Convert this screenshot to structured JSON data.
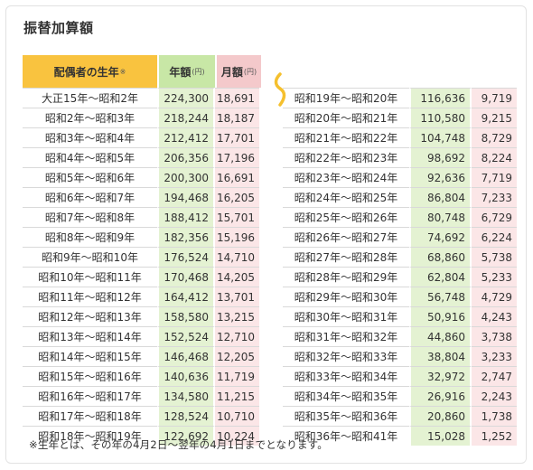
{
  "title": "振替加算額",
  "headers": {
    "spouse_birth_year": "配偶者の生年",
    "spouse_mark": "※",
    "annual": "年額",
    "annual_unit": "(円)",
    "monthly": "月額",
    "monthly_unit": "(円)"
  },
  "left_rows": [
    {
      "era": "大正15年〜昭和2年",
      "annual": "224,300",
      "monthly": "18,691"
    },
    {
      "era": "昭和2年〜昭和3年",
      "annual": "218,244",
      "monthly": "18,187"
    },
    {
      "era": "昭和3年〜昭和4年",
      "annual": "212,412",
      "monthly": "17,701"
    },
    {
      "era": "昭和4年〜昭和5年",
      "annual": "206,356",
      "monthly": "17,196"
    },
    {
      "era": "昭和5年〜昭和6年",
      "annual": "200,300",
      "monthly": "16,691"
    },
    {
      "era": "昭和6年〜昭和7年",
      "annual": "194,468",
      "monthly": "16,205"
    },
    {
      "era": "昭和7年〜昭和8年",
      "annual": "188,412",
      "monthly": "15,701"
    },
    {
      "era": "昭和8年〜昭和9年",
      "annual": "182,356",
      "monthly": "15,196"
    },
    {
      "era": "昭和9年〜昭和10年",
      "annual": "176,524",
      "monthly": "14,710"
    },
    {
      "era": "昭和10年〜昭和11年",
      "annual": "170,468",
      "monthly": "14,205"
    },
    {
      "era": "昭和11年〜昭和12年",
      "annual": "164,412",
      "monthly": "13,701"
    },
    {
      "era": "昭和12年〜昭和13年",
      "annual": "158,580",
      "monthly": "13,215"
    },
    {
      "era": "昭和13年〜昭和14年",
      "annual": "152,524",
      "monthly": "12,710"
    },
    {
      "era": "昭和14年〜昭和15年",
      "annual": "146,468",
      "monthly": "12,205"
    },
    {
      "era": "昭和15年〜昭和16年",
      "annual": "140,636",
      "monthly": "11,719"
    },
    {
      "era": "昭和16年〜昭和17年",
      "annual": "134,580",
      "monthly": "11,215"
    },
    {
      "era": "昭和17年〜昭和18年",
      "annual": "128,524",
      "monthly": "10,710"
    },
    {
      "era": "昭和18年〜昭和19年",
      "annual": "122,692",
      "monthly": "10,224"
    }
  ],
  "right_rows": [
    {
      "era": "昭和19年〜昭和20年",
      "annual": "116,636",
      "monthly": "9,719"
    },
    {
      "era": "昭和20年〜昭和21年",
      "annual": "110,580",
      "monthly": "9,215"
    },
    {
      "era": "昭和21年〜昭和22年",
      "annual": "104,748",
      "monthly": "8,729"
    },
    {
      "era": "昭和22年〜昭和23年",
      "annual": "98,692",
      "monthly": "8,224"
    },
    {
      "era": "昭和23年〜昭和24年",
      "annual": "92,636",
      "monthly": "7,719"
    },
    {
      "era": "昭和24年〜昭和25年",
      "annual": "86,804",
      "monthly": "7,233"
    },
    {
      "era": "昭和25年〜昭和26年",
      "annual": "80,748",
      "monthly": "6,729"
    },
    {
      "era": "昭和26年〜昭和27年",
      "annual": "74,692",
      "monthly": "6,224"
    },
    {
      "era": "昭和27年〜昭和28年",
      "annual": "68,860",
      "monthly": "5,738"
    },
    {
      "era": "昭和28年〜昭和29年",
      "annual": "62,804",
      "monthly": "5,233"
    },
    {
      "era": "昭和29年〜昭和30年",
      "annual": "56,748",
      "monthly": "4,729"
    },
    {
      "era": "昭和30年〜昭和31年",
      "annual": "50,916",
      "monthly": "4,243"
    },
    {
      "era": "昭和31年〜昭和32年",
      "annual": "44,860",
      "monthly": "3,738"
    },
    {
      "era": "昭和32年〜昭和33年",
      "annual": "38,804",
      "monthly": "3,233"
    },
    {
      "era": "昭和33年〜昭和34年",
      "annual": "32,972",
      "monthly": "2,747"
    },
    {
      "era": "昭和34年〜昭和35年",
      "annual": "26,916",
      "monthly": "2,243"
    },
    {
      "era": "昭和35年〜昭和36年",
      "annual": "20,860",
      "monthly": "1,738"
    },
    {
      "era": "昭和36年〜昭和41年",
      "annual": "15,028",
      "monthly": "1,252"
    }
  ],
  "footnote": "※生年とは、その年の4月2日〜翌年の4月1日までとなります。",
  "colors": {
    "spouse_header": "#f9c33f",
    "annual_header": "#c8e7a6",
    "monthly_header": "#f4c9cb",
    "annual_cell": "#e4f2d2",
    "monthly_cell": "#fbe6e7",
    "wave": "#f5c02e"
  },
  "icons": {
    "continuation": "wave-squiggle-icon"
  }
}
